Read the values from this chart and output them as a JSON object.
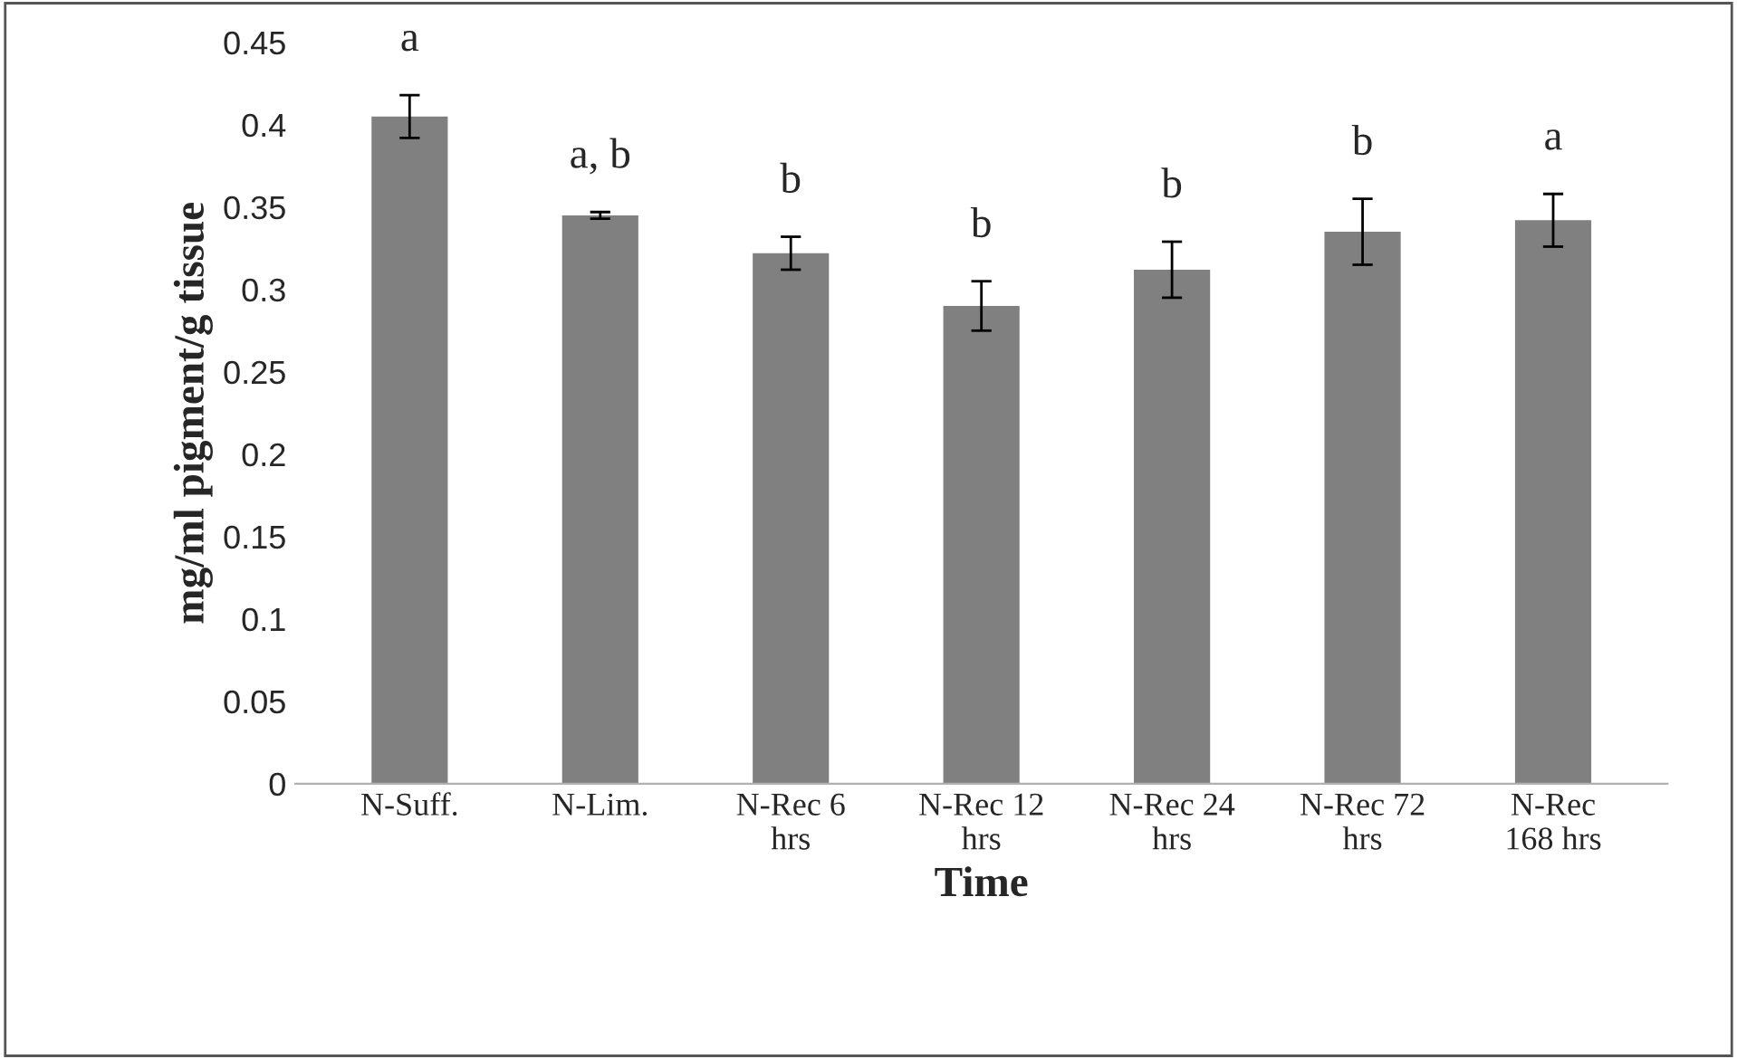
{
  "chart_data": {
    "type": "bar",
    "xlabel": "Time",
    "ylabel": "mg/ml pigment/g tissue",
    "categories": [
      "N-Suff.",
      "N-Lim.",
      "N-Rec 6\nhrs",
      "N-Rec 12\nhrs",
      "N-Rec 24\nhrs",
      "N-Rec 72\nhrs",
      "N-Rec\n168 hrs"
    ],
    "values": [
      0.405,
      0.345,
      0.322,
      0.29,
      0.312,
      0.335,
      0.342
    ],
    "errors": [
      0.013,
      0.002,
      0.01,
      0.015,
      0.017,
      0.02,
      0.016
    ],
    "color": "#808080",
    "ylim": [
      0,
      0.45
    ],
    "yticks": [
      {
        "value": 0,
        "label": "0"
      },
      {
        "value": 0.05,
        "label": "0.05"
      },
      {
        "value": 0.1,
        "label": "0.1"
      },
      {
        "value": 0.15,
        "label": "0.15"
      },
      {
        "value": 0.2,
        "label": "0.2"
      },
      {
        "value": 0.25,
        "label": "0.25"
      },
      {
        "value": 0.3,
        "label": "0.3"
      },
      {
        "value": 0.35,
        "label": "0.35"
      },
      {
        "value": 0.4,
        "label": "0.4"
      },
      {
        "value": 0.45,
        "label": "0.45"
      }
    ],
    "annotations": [
      "a",
      "a, b",
      "b",
      "b",
      "b",
      "b",
      "a"
    ],
    "grid": false,
    "legend": false
  }
}
